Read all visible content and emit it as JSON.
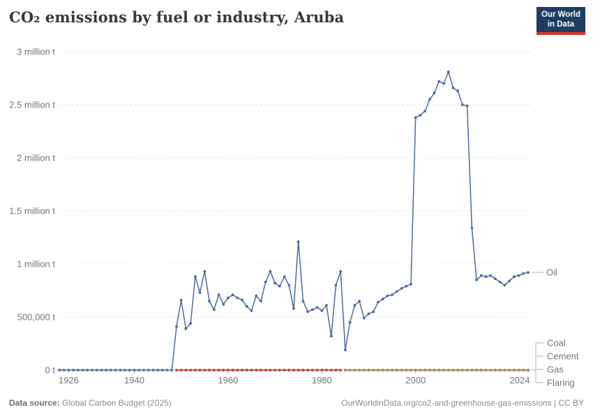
{
  "header": {
    "title": "CO₂ emissions by fuel or industry, Aruba",
    "logo": {
      "line1": "Our World",
      "line2": "in Data",
      "bg_color": "#1d3d63",
      "accent_color": "#d8352b"
    }
  },
  "chart_data": {
    "type": "line",
    "title": "CO₂ emissions by fuel or industry, Aruba",
    "unit": "million tonnes of CO₂ per year",
    "xlim": [
      1924,
      2024
    ],
    "ylim": [
      0,
      3
    ],
    "grid": "horizontal dotted",
    "legend_position": "right edge, labels at series end values",
    "y_ticks": [
      {
        "value": 3,
        "label": "3 million t"
      },
      {
        "value": 2.5,
        "label": "2.5 million t"
      },
      {
        "value": 2,
        "label": "2 million t"
      },
      {
        "value": 1.5,
        "label": "1.5 million t"
      },
      {
        "value": 1,
        "label": "1 million t"
      },
      {
        "value": 0.5,
        "label": "500,000 t"
      },
      {
        "value": 0,
        "label": "0 t"
      }
    ],
    "x_ticks": [
      1926,
      1940,
      1960,
      1980,
      2000,
      2024
    ],
    "series": [
      {
        "name": "Flaring",
        "color": "#9758C6",
        "start_year": 1985,
        "end_year": 2024,
        "constant_value": 0
      },
      {
        "name": "Gas",
        "color": "#2C8465",
        "start_year": 1985,
        "end_year": 2024,
        "constant_value": 0
      },
      {
        "name": "Cement",
        "color": "#B2894F",
        "start_year": 1985,
        "end_year": 2024,
        "constant_value": 0
      },
      {
        "name": "Coal",
        "color": "#AF3E25",
        "start_year": 1949,
        "end_year": 1984,
        "constant_value": 0
      },
      {
        "name": "Oil",
        "color": "#4C6A9C",
        "start_year": 1924,
        "values": [
          0,
          0,
          0,
          0,
          0,
          0,
          0,
          0,
          0,
          0,
          0,
          0,
          0,
          0,
          0,
          0,
          0,
          0,
          0,
          0,
          0,
          0,
          0,
          0,
          0,
          0.41,
          0.66,
          0.39,
          0.44,
          0.88,
          0.73,
          0.93,
          0.65,
          0.57,
          0.71,
          0.62,
          0.68,
          0.71,
          0.68,
          0.66,
          0.6,
          0.56,
          0.7,
          0.65,
          0.83,
          0.93,
          0.82,
          0.79,
          0.88,
          0.8,
          0.58,
          1.21,
          0.65,
          0.55,
          0.57,
          0.59,
          0.56,
          0.61,
          0.32,
          0.8,
          0.93,
          0.19,
          0.45,
          0.61,
          0.65,
          0.49,
          0.53,
          0.55,
          0.64,
          0.67,
          0.7,
          0.71,
          0.74,
          0.77,
          0.79,
          0.81,
          2.38,
          2.4,
          2.44,
          2.55,
          2.61,
          2.72,
          2.7,
          2.81,
          2.66,
          2.63,
          2.5,
          2.49,
          1.34,
          0.85,
          0.89,
          0.88,
          0.89,
          0.86,
          0.83,
          0.8,
          0.84,
          0.88,
          0.89,
          0.91,
          0.92
        ]
      }
    ]
  },
  "legend": {
    "end_label": {
      "text": "Oil",
      "color": "#4C6A9C"
    },
    "bracket_labels": [
      {
        "text": "Coal",
        "color": "#AF3E25"
      },
      {
        "text": "Cement",
        "color": "#B2894F"
      },
      {
        "text": "Gas",
        "color": "#2C8465"
      },
      {
        "text": "Flaring",
        "color": "#9758C6"
      }
    ]
  },
  "footer": {
    "source_label": "Data source:",
    "source_value": " Global Carbon Budget (2025)",
    "credit": "OurWorldinData.org/co2-and-greenhouse-gas-emissions | CC BY"
  }
}
